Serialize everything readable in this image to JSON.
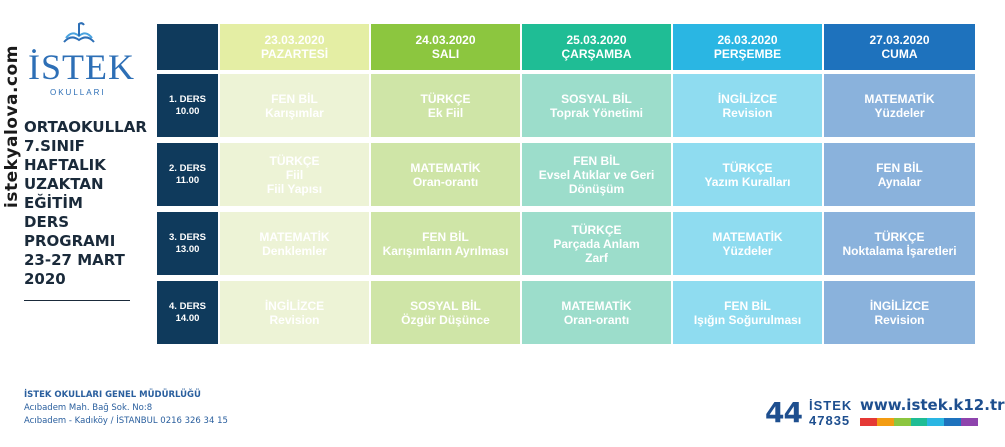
{
  "watermark": "istekyalova.com",
  "logo": {
    "name": "İSTEK",
    "sub": "OKULLARI"
  },
  "left_title": [
    "ORTAOKULLAR",
    "7.SINIF",
    "HAFTALIK",
    "UZAKTAN",
    "EĞİTİM",
    "DERS",
    "PROGRAMI",
    "23-27 MART",
    "2020"
  ],
  "days": [
    {
      "date": "23.03.2020",
      "name": "PAZARTESİ"
    },
    {
      "date": "24.03.2020",
      "name": "SALI"
    },
    {
      "date": "25.03.2020",
      "name": "ÇARŞAMBA"
    },
    {
      "date": "26.03.2020",
      "name": "PERŞEMBE"
    },
    {
      "date": "27.03.2020",
      "name": "CUMA"
    }
  ],
  "lessons": [
    {
      "label": "1. DERS",
      "time": "10.00",
      "cells": [
        {
          "subject": "FEN BİL",
          "topic": [
            "Karışımlar"
          ]
        },
        {
          "subject": "TÜRKÇE",
          "topic": [
            "Ek Fiil"
          ]
        },
        {
          "subject": "SOSYAL BİL",
          "topic": [
            "Toprak Yönetimi"
          ]
        },
        {
          "subject": "İNGİLİZCE",
          "topic": [
            "Revision"
          ]
        },
        {
          "subject": "MATEMATİK",
          "topic": [
            "Yüzdeler"
          ]
        }
      ]
    },
    {
      "label": "2. DERS",
      "time": "11.00",
      "cells": [
        {
          "subject": "TÜRKÇE",
          "topic": [
            "Fiil",
            "Fiil Yapısı"
          ]
        },
        {
          "subject": "MATEMATİK",
          "topic": [
            "Oran-orantı"
          ]
        },
        {
          "subject": "FEN BİL",
          "topic": [
            "Evsel Atıklar ve Geri Dönüşüm"
          ]
        },
        {
          "subject": "TÜRKÇE",
          "topic": [
            "Yazım Kuralları"
          ]
        },
        {
          "subject": "FEN BİL",
          "topic": [
            "Aynalar"
          ]
        }
      ]
    },
    {
      "label": "3. DERS",
      "time": "13.00",
      "cells": [
        {
          "subject": "MATEMATİK",
          "topic": [
            "Denklemler"
          ]
        },
        {
          "subject": "FEN BİL",
          "topic": [
            "Karışımların Ayrılması"
          ]
        },
        {
          "subject": "TÜRKÇE",
          "topic": [
            "Parçada Anlam",
            "Zarf"
          ]
        },
        {
          "subject": "MATEMATİK",
          "topic": [
            "Yüzdeler"
          ]
        },
        {
          "subject": "TÜRKÇE",
          "topic": [
            "Noktalama İşaretleri"
          ]
        }
      ]
    },
    {
      "label": "4. DERS",
      "time": "14.00",
      "cells": [
        {
          "subject": "İNGİLİZCE",
          "topic": [
            "Revision"
          ]
        },
        {
          "subject": "SOSYAL BİL",
          "topic": [
            "Özgür Düşünce"
          ]
        },
        {
          "subject": "MATEMATİK",
          "topic": [
            "Oran-orantı"
          ]
        },
        {
          "subject": "FEN BİL",
          "topic": [
            "Işığın Soğurulması"
          ]
        },
        {
          "subject": "İNGİLİZCE",
          "topic": [
            "Revision"
          ]
        }
      ]
    }
  ],
  "footer": {
    "org": "İSTEK OKULLARI GENEL MÜDÜRLÜĞÜ",
    "address1": "Acıbadem Mah. Bağ Sok. No:8",
    "address2": "Acıbadem - Kadıköy / İSTANBUL 0216 326 34 15",
    "brand_number": "44",
    "brand_name": "İSTEK",
    "brand_phone": "47835",
    "website": "www.istek.k12.tr"
  },
  "colors": {
    "header": [
      "#e4eea4",
      "#8cc63f",
      "#1fbd95",
      "#2ab6e3",
      "#1e72bd"
    ],
    "body": [
      "#edf3d6",
      "#cfe5a7",
      "#9cddcb",
      "#8fdcf0",
      "#8ab2dc"
    ],
    "lesson": "#0f3a5c",
    "colorbar": [
      "#e53935",
      "#f39c12",
      "#8cc63f",
      "#1fbd95",
      "#2ab6e3",
      "#1e72bd",
      "#8e44ad"
    ]
  }
}
